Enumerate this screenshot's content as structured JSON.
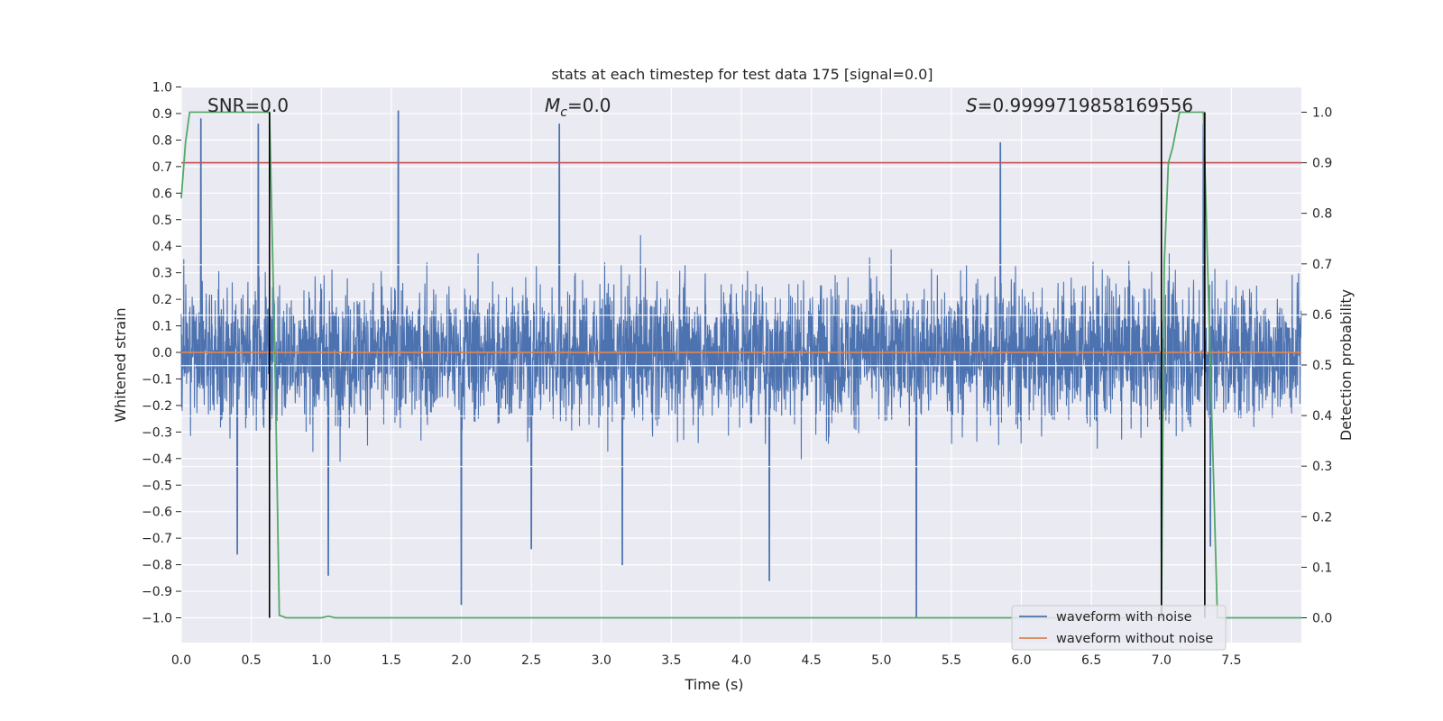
{
  "chart_data": {
    "type": "line",
    "title": "stats at each timestep for test data 175 [signal=0.0]",
    "xlabel": "Time (s)",
    "ylabel": "Whitened strain",
    "y2label": "Detection probability",
    "xlim": [
      0.0,
      8.0
    ],
    "ylim": [
      -1.09,
      1.0
    ],
    "y2lim": [
      -0.05,
      1.05
    ],
    "xticks": [
      "0.0",
      "0.5",
      "1.0",
      "1.5",
      "2.0",
      "2.5",
      "3.0",
      "3.5",
      "4.0",
      "4.5",
      "5.0",
      "5.5",
      "6.0",
      "6.5",
      "7.0",
      "7.5"
    ],
    "yticks": [
      "1.0",
      "0.9",
      "0.8",
      "0.7",
      "0.6",
      "0.5",
      "0.4",
      "0.3",
      "0.2",
      "0.1",
      "0.0",
      "−0.1",
      "−0.2",
      "−0.3",
      "−0.4",
      "−0.5",
      "−0.6",
      "−0.7",
      "−0.8",
      "−0.9",
      "−1.0"
    ],
    "y2ticks": [
      "1.0",
      "0.9",
      "0.8",
      "0.7",
      "0.6",
      "0.5",
      "0.4",
      "0.3",
      "0.2",
      "0.1",
      "0.0"
    ],
    "grid": true,
    "legend_position": "bottom-right",
    "annotations": {
      "snr": "SNR=0.0",
      "mc_symbol": "M",
      "mc_sub": "c",
      "mc_value": "=0.0",
      "s_symbol": "S",
      "s_value": "=0.9999719858169556"
    },
    "series": [
      {
        "name": "waveform with noise",
        "color": "#4c72b0",
        "axis": "left",
        "description_values": {
          "envelope_upper_typical": 0.45,
          "envelope_lower_typical": -0.45,
          "peaks": [
            [
              0.14,
              0.88
            ],
            [
              0.55,
              0.86
            ],
            [
              1.55,
              0.91
            ],
            [
              2.7,
              0.86
            ],
            [
              5.85,
              0.79
            ],
            [
              7.3,
              0.86
            ]
          ],
          "troughs": [
            [
              0.4,
              -0.76
            ],
            [
              1.05,
              -0.84
            ],
            [
              2.0,
              -0.95
            ],
            [
              2.5,
              -0.74
            ],
            [
              3.15,
              -0.8
            ],
            [
              4.2,
              -0.86
            ],
            [
              5.25,
              -1.0
            ],
            [
              7.0,
              -0.75
            ],
            [
              7.35,
              -0.73
            ]
          ]
        }
      },
      {
        "name": "waveform without noise",
        "color": "#dd8452",
        "axis": "left",
        "x": [
          0.0,
          8.0
        ],
        "y": [
          0.0,
          0.0
        ]
      },
      {
        "color": "#55a868",
        "axis": "right",
        "x": [
          0.0,
          0.03,
          0.06,
          0.1,
          0.2,
          0.4,
          0.6,
          0.63,
          0.67,
          0.7,
          0.75,
          1.0,
          1.05,
          1.1,
          1.2,
          2.0,
          3.0,
          4.0,
          5.0,
          6.0,
          6.99,
          7.0,
          7.02,
          7.05,
          7.08,
          7.13,
          7.3,
          7.35,
          7.4,
          7.5,
          8.0
        ],
        "y": [
          0.83,
          0.94,
          1.0,
          1.0,
          1.0,
          1.0,
          1.0,
          1.0,
          0.5,
          0.005,
          0.0,
          0.0,
          0.003,
          0.0,
          0.0,
          0.0,
          0.0,
          0.0,
          0.0,
          0.0,
          0.0,
          0.0,
          0.7,
          0.9,
          0.93,
          1.0,
          1.0,
          0.5,
          0.0,
          0.0,
          0.0
        ]
      },
      {
        "color": "#c44e52",
        "axis": "right",
        "x": [
          0.0,
          8.0
        ],
        "y": [
          0.9,
          0.9
        ]
      }
    ],
    "vertical_markers": [
      0.63,
      7.0,
      7.31
    ]
  }
}
